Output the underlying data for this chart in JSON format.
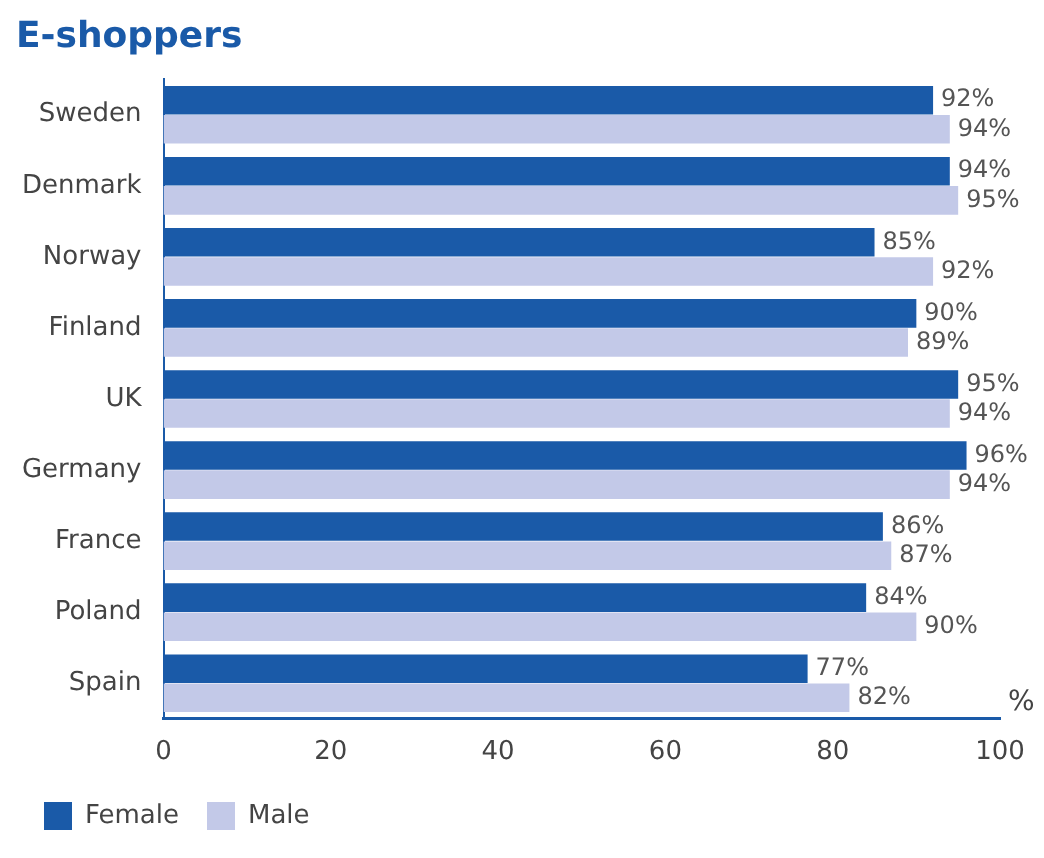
{
  "chart_data": {
    "type": "bar",
    "orientation": "horizontal",
    "title": "E-shoppers",
    "xlabel": "%",
    "categories": [
      "Sweden",
      "Denmark",
      "Norway",
      "Finland",
      "UK",
      "Germany",
      "France",
      "Poland",
      "Spain"
    ],
    "series": [
      {
        "name": "Female",
        "color": "#1a5aa8",
        "values": [
          92,
          94,
          85,
          90,
          95,
          96,
          86,
          84,
          77
        ],
        "value_labels": [
          "92%",
          "94%",
          "85%",
          "90%",
          "95%",
          "96%",
          "86%",
          "84%",
          "77%"
        ]
      },
      {
        "name": "Male",
        "color": "#c3c9e8",
        "values": [
          94,
          95,
          92,
          89,
          94,
          94,
          87,
          90,
          82
        ],
        "value_labels": [
          "94%",
          "95%",
          "92%",
          "89%",
          "94%",
          "94%",
          "87%",
          "90%",
          "82%"
        ]
      }
    ],
    "xlim": [
      0,
      100
    ],
    "xticks": [
      0,
      20,
      40,
      60,
      80,
      100
    ],
    "legend": "bottom left"
  }
}
